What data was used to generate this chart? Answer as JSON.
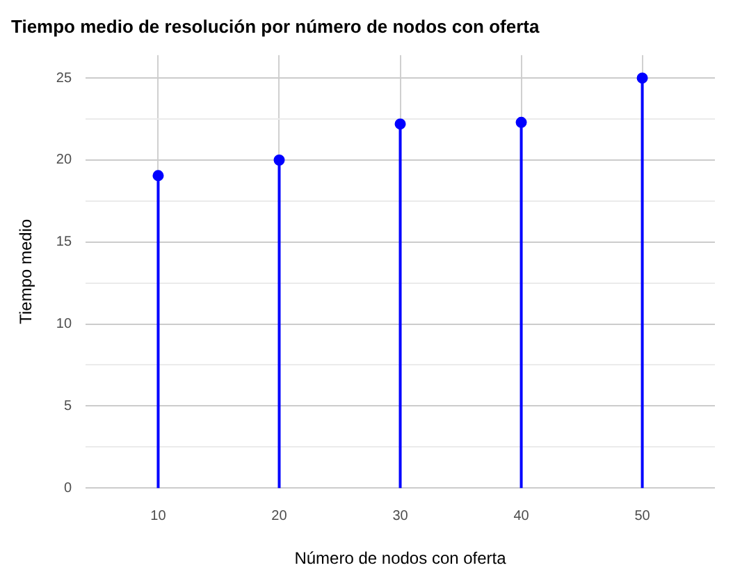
{
  "chart_data": {
    "type": "lollipop",
    "title": "Tiempo medio de resolución por número de nodos con oferta",
    "xlabel": "Número de nodos con oferta",
    "ylabel": "Tiempo medio",
    "x": [
      10,
      20,
      30,
      40,
      50
    ],
    "values": [
      19.05,
      20,
      22.2,
      22.3,
      25
    ],
    "color": "#0000ff",
    "marker": "circle",
    "xlim": [
      4,
      56
    ],
    "xticks": [
      10,
      20,
      30,
      40,
      50
    ],
    "ylim": [
      0,
      26.4
    ],
    "yticks": [
      0,
      {
        "value": 2.5,
        "label": null
      },
      5,
      {
        "value": 7.5,
        "label": null
      },
      10,
      {
        "value": 12.5,
        "label": null
      },
      15,
      {
        "value": 17.5,
        "label": null
      },
      20,
      {
        "value": 22.5,
        "label": null
      },
      25
    ],
    "grid": true
  }
}
